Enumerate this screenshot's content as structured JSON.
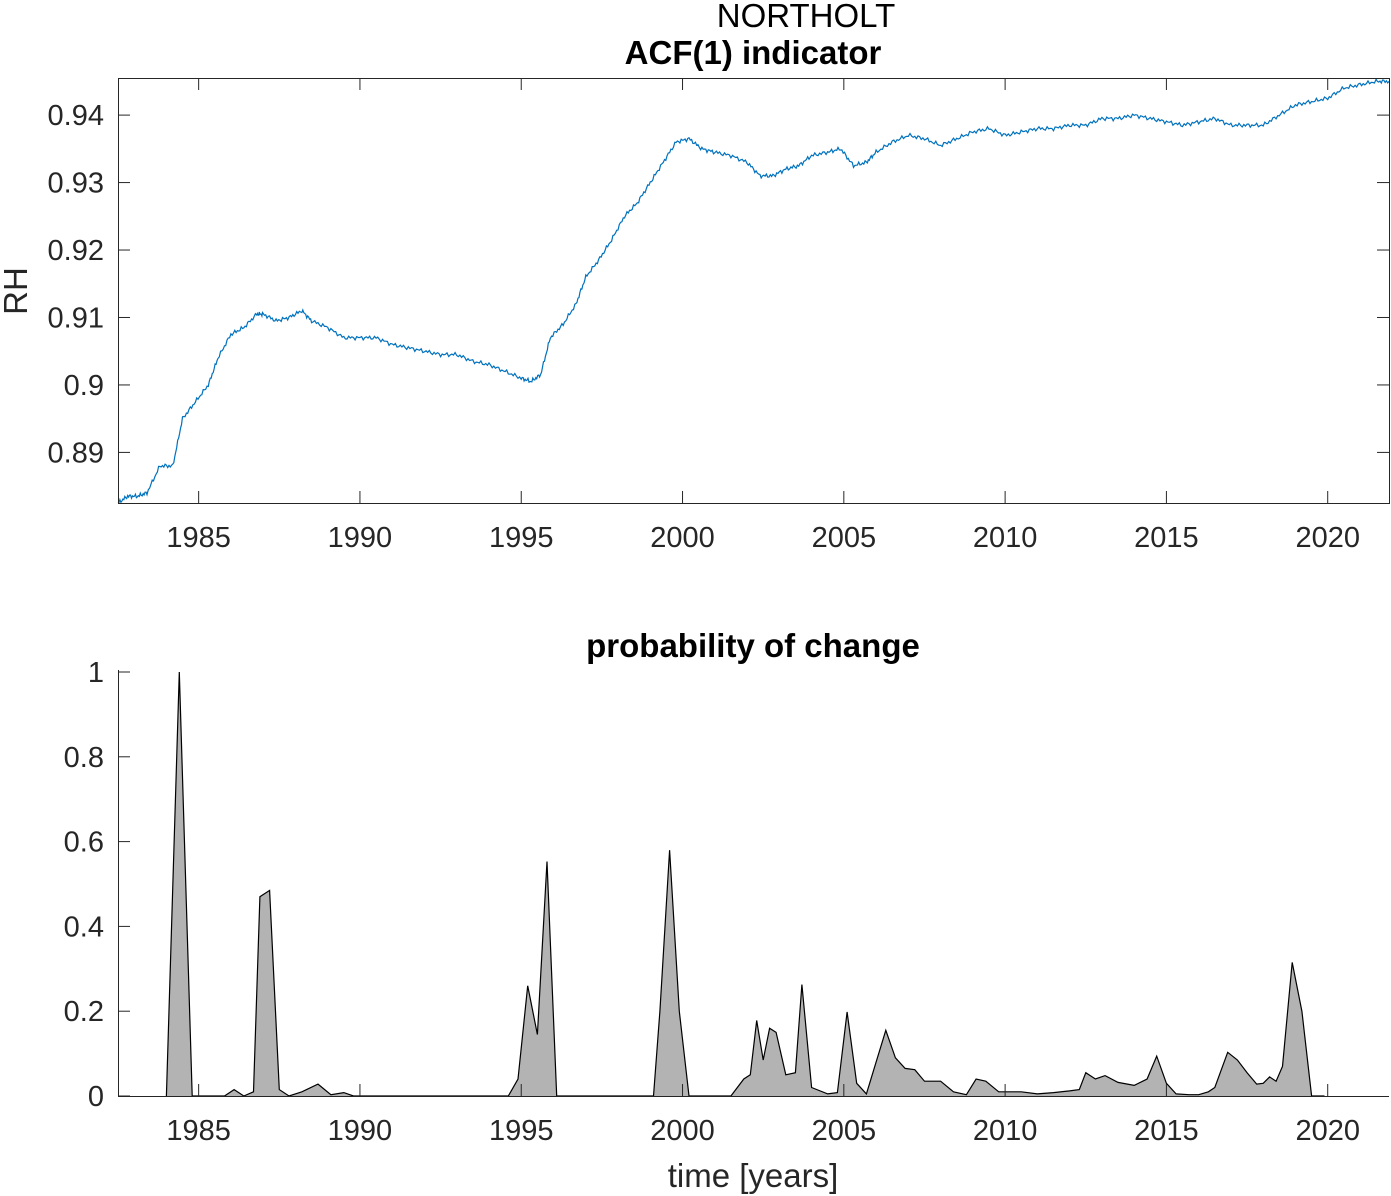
{
  "figure": {
    "suptitle": "NORTHOLT",
    "colors": {
      "acf_line": "#0072bd",
      "area_fill": "#b3b3b3",
      "area_edge": "#000000",
      "axis": "#262626"
    }
  },
  "chart_data": [
    {
      "type": "line",
      "title": "ACF(1) indicator",
      "xlabel": "",
      "ylabel": "RH",
      "xlim": [
        1982.5,
        2021.9
      ],
      "ylim": [
        0.8825,
        0.9455
      ],
      "xticks": [
        1985,
        1990,
        1995,
        2000,
        2005,
        2010,
        2015,
        2020
      ],
      "xtick_labels": [
        "1985",
        "1990",
        "1995",
        "2000",
        "2005",
        "2010",
        "2015",
        "2020"
      ],
      "yticks": [
        0.89,
        0.9,
        0.91,
        0.92,
        0.93,
        0.94
      ],
      "ytick_labels": [
        "0.89",
        "0.9",
        "0.91",
        "0.92",
        "0.93",
        "0.94"
      ],
      "grid": false,
      "series": [
        {
          "x": [
            1982.5,
            1982.8,
            1983.1,
            1983.4,
            1983.8,
            1984.2,
            1984.5,
            1984.9,
            1985.3,
            1985.6,
            1986.0,
            1986.4,
            1986.8,
            1987.0,
            1987.4,
            1987.8,
            1988.2,
            1988.5,
            1989.0,
            1989.5,
            1990.0,
            1990.5,
            1991.0,
            1991.5,
            1992.0,
            1992.5,
            1993.0,
            1993.5,
            1994.0,
            1994.5,
            1995.0,
            1995.3,
            1995.6,
            1995.9,
            1996.3,
            1996.7,
            1997.0,
            1997.4,
            1997.8,
            1998.2,
            1998.6,
            1999.0,
            1999.4,
            1999.8,
            2000.2,
            2000.6,
            2001.0,
            2001.5,
            2002.0,
            2002.4,
            2002.8,
            2003.2,
            2003.6,
            2004.0,
            2004.5,
            2004.9,
            2005.3,
            2005.7,
            2006.0,
            2006.5,
            2007.0,
            2007.5,
            2008.0,
            2008.5,
            2009.0,
            2009.5,
            2010.0,
            2010.5,
            2011.0,
            2011.5,
            2012.0,
            2012.5,
            2013.0,
            2013.5,
            2014.0,
            2014.5,
            2015.0,
            2015.5,
            2016.0,
            2016.5,
            2017.0,
            2017.5,
            2018.0,
            2018.5,
            2019.0,
            2019.5,
            2020.0,
            2020.5,
            2021.0,
            2021.5,
            2021.9
          ],
          "y": [
            0.8825,
            0.8835,
            0.8835,
            0.884,
            0.888,
            0.888,
            0.895,
            0.8975,
            0.9,
            0.904,
            0.9075,
            0.9085,
            0.9105,
            0.9105,
            0.9095,
            0.91,
            0.911,
            0.9095,
            0.9085,
            0.907,
            0.907,
            0.907,
            0.906,
            0.9055,
            0.905,
            0.9045,
            0.9045,
            0.9035,
            0.903,
            0.902,
            0.901,
            0.9005,
            0.9015,
            0.907,
            0.909,
            0.912,
            0.916,
            0.9185,
            0.9215,
            0.925,
            0.927,
            0.93,
            0.933,
            0.936,
            0.9365,
            0.935,
            0.9345,
            0.934,
            0.933,
            0.931,
            0.931,
            0.932,
            0.9325,
            0.934,
            0.9345,
            0.935,
            0.9325,
            0.933,
            0.9345,
            0.936,
            0.937,
            0.9365,
            0.9355,
            0.9365,
            0.9375,
            0.938,
            0.937,
            0.9375,
            0.938,
            0.938,
            0.9385,
            0.9385,
            0.9395,
            0.9395,
            0.94,
            0.9395,
            0.939,
            0.9385,
            0.939,
            0.9395,
            0.9385,
            0.9385,
            0.9385,
            0.94,
            0.9415,
            0.942,
            0.9425,
            0.944,
            0.9445,
            0.945,
            0.945
          ]
        }
      ]
    },
    {
      "type": "area",
      "title": "probability of change",
      "xlabel": "time [years]",
      "ylabel": "",
      "xlim": [
        1982.5,
        2021.9
      ],
      "ylim": [
        0,
        1
      ],
      "xticks": [
        1985,
        1990,
        1995,
        2000,
        2005,
        2010,
        2015,
        2020
      ],
      "xtick_labels": [
        "1985",
        "1990",
        "1995",
        "2000",
        "2005",
        "2010",
        "2015",
        "2020"
      ],
      "yticks": [
        0,
        0.2,
        0.4,
        0.6,
        0.8,
        1
      ],
      "ytick_labels": [
        "0",
        "0.2",
        "0.4",
        "0.6",
        "0.8",
        "1"
      ],
      "grid": false,
      "series": [
        {
          "x": [
            1984.0,
            1984.4,
            1984.8,
            1985.8,
            1986.1,
            1986.4,
            1986.7,
            1986.9,
            1987.2,
            1987.5,
            1987.8,
            1988.2,
            1988.7,
            1989.1,
            1989.5,
            1989.8,
            1994.6,
            1994.9,
            1995.2,
            1995.5,
            1995.8,
            1996.1,
            1999.1,
            1999.3,
            1999.6,
            1999.9,
            2000.2,
            2001.5,
            2001.9,
            2002.1,
            2002.3,
            2002.5,
            2002.7,
            2002.9,
            2003.2,
            2003.5,
            2003.7,
            2004.0,
            2004.5,
            2004.8,
            2005.1,
            2005.4,
            2005.7,
            2006.0,
            2006.3,
            2006.6,
            2006.9,
            2007.2,
            2007.5,
            2008.0,
            2008.4,
            2008.8,
            2009.1,
            2009.4,
            2009.8,
            2010.0,
            2010.5,
            2011.0,
            2011.5,
            2012.0,
            2012.3,
            2012.5,
            2012.8,
            2013.1,
            2013.5,
            2014.0,
            2014.4,
            2014.7,
            2015.0,
            2015.3,
            2015.7,
            2016.0,
            2016.3,
            2016.5,
            2016.9,
            2017.2,
            2017.5,
            2017.8,
            2018.0,
            2018.2,
            2018.4,
            2018.6,
            2018.9,
            2019.2,
            2019.5,
            2019.9
          ],
          "y": [
            0,
            1.0,
            0,
            0,
            0.015,
            0,
            0.01,
            0.47,
            0.485,
            0.015,
            0,
            0.01,
            0.028,
            0.003,
            0.008,
            0,
            0,
            0.04,
            0.26,
            0.145,
            0.553,
            0,
            0,
            0.2,
            0.58,
            0.2,
            0,
            0,
            0.04,
            0.05,
            0.178,
            0.085,
            0.16,
            0.15,
            0.05,
            0.055,
            0.263,
            0.02,
            0.005,
            0.008,
            0.198,
            0.03,
            0.005,
            0.08,
            0.155,
            0.09,
            0.065,
            0.062,
            0.035,
            0.035,
            0.01,
            0.003,
            0.04,
            0.035,
            0.01,
            0.01,
            0.01,
            0.005,
            0.008,
            0.012,
            0.015,
            0.055,
            0.04,
            0.048,
            0.032,
            0.025,
            0.04,
            0.094,
            0.03,
            0.005,
            0.003,
            0.003,
            0.01,
            0.02,
            0.103,
            0.085,
            0.055,
            0.028,
            0.03,
            0.045,
            0.035,
            0.07,
            0.315,
            0.2,
            0,
            0
          ]
        }
      ]
    }
  ]
}
